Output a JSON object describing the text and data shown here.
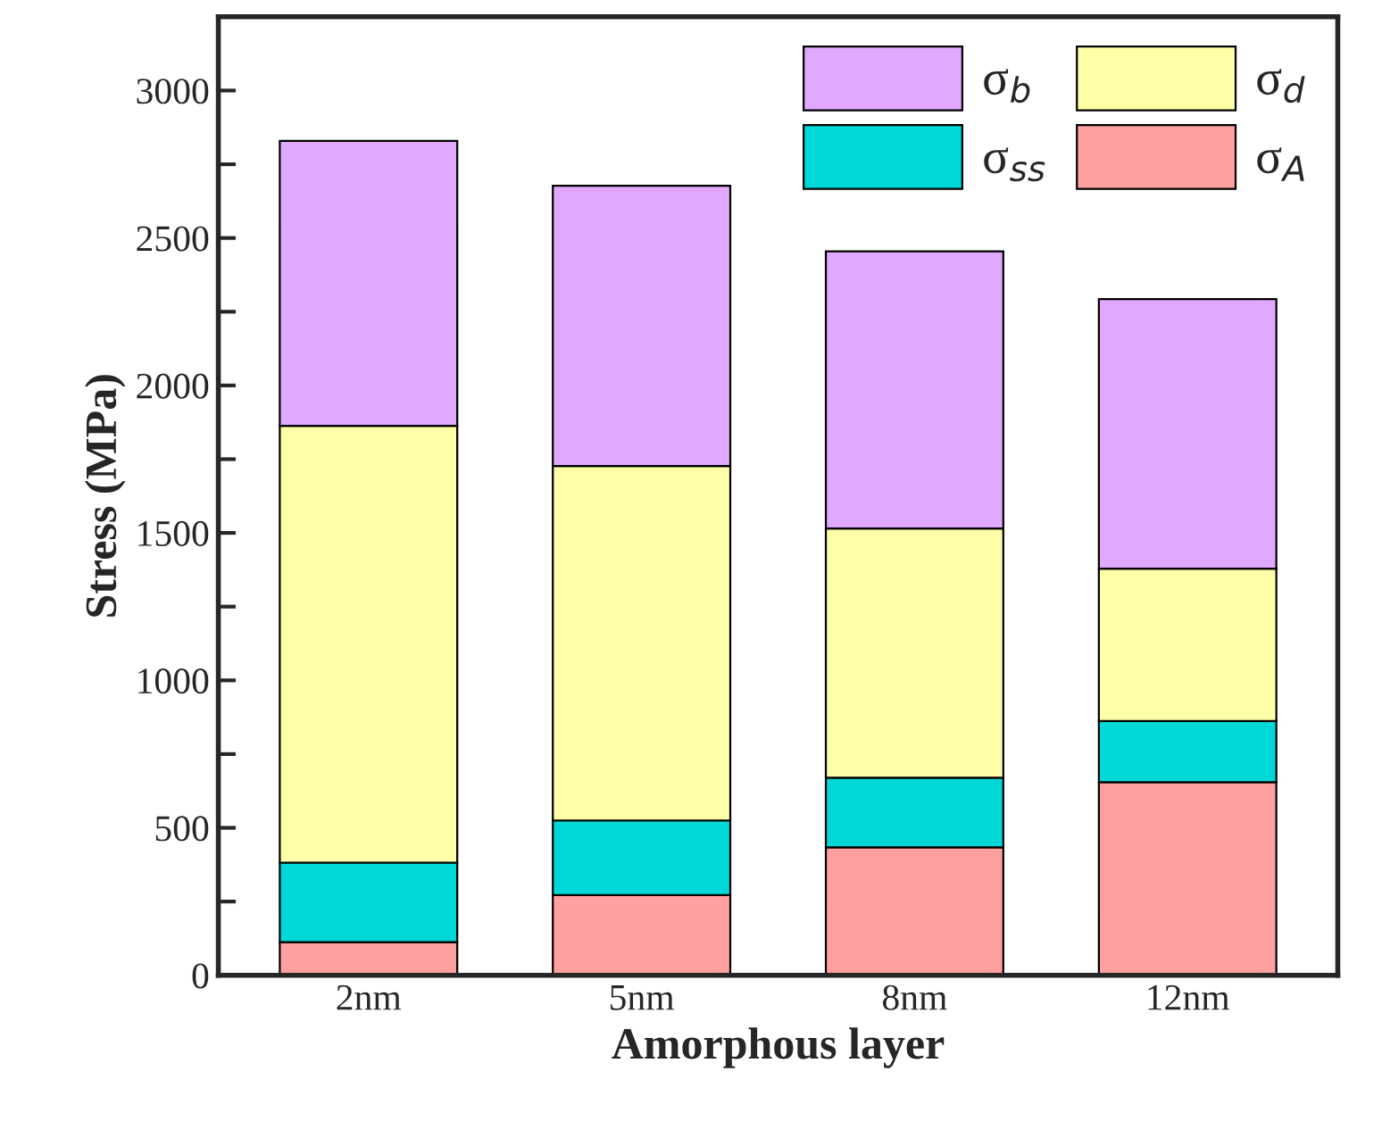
{
  "chart_data": {
    "type": "bar",
    "stacked": true,
    "xlabel": "Amorphous layer",
    "ylabel": "Stress (MPa)",
    "categories": [
      "2nm",
      "5nm",
      "8nm",
      "12nm"
    ],
    "series": [
      {
        "name": "σ$_{A}$",
        "color": "#ffa0a0",
        "values": [
          112,
          272,
          434,
          655
        ]
      },
      {
        "name": "σ$_{ss}$",
        "color": "#00d8d8",
        "values": [
          270,
          253,
          236,
          207
        ]
      },
      {
        "name": "σ$_{d}$",
        "color": "#ffffa8",
        "values": [
          1481,
          1202,
          845,
          517
        ]
      },
      {
        "name": "σ$_{b}$",
        "color": "#e0a8ff",
        "values": [
          966,
          950,
          940,
          914
        ]
      }
    ],
    "ylim": [
      0,
      3250
    ],
    "yticks": [
      0,
      {
        "value": 250,
        "label": null
      },
      500,
      {
        "value": 750,
        "label": null
      },
      1000,
      {
        "value": 1250,
        "label": null
      },
      1500,
      {
        "value": 1750,
        "label": null
      },
      2000,
      {
        "value": 2250,
        "label": null
      },
      2500,
      {
        "value": 2750,
        "label": null
      },
      3000
    ],
    "legend": "top right",
    "grid": false
  }
}
